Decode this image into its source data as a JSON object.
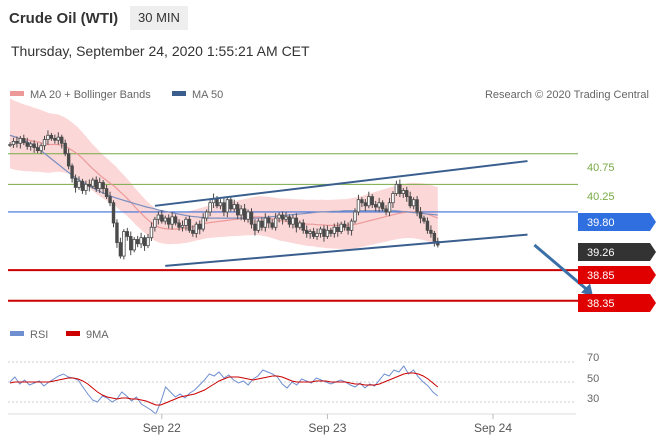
{
  "header": {
    "title": "Crude Oil (WTI)",
    "timeframe": "30 MIN",
    "datetime": "Thursday, September 24, 2020 1:55:21 AM CET"
  },
  "legend": {
    "ma20_label": "MA 20 + Bollinger Bands",
    "ma50_label": "MA 50",
    "credit": "Research © 2020 Trading Central"
  },
  "rsi_legend": {
    "rsi_label": "RSI",
    "ma9_label": "9MA"
  },
  "colors": {
    "bollinger": "#f9c9c9",
    "ma20": "#ee9999",
    "ma50": "#7a8fc0",
    "trendline": "#3a5f8f",
    "candle": "#4a4a4a",
    "resistance": "#77aa44",
    "pivot": "#3a6fd8",
    "last": "#333333",
    "support": "#cc0000",
    "forecast_arrow": "#3a6fa8",
    "rsi": "#6f8fd0",
    "rsi_ma": "#cc0000"
  },
  "chart_data": [
    {
      "type": "candlestick",
      "title": "Crude Oil (WTI)",
      "ylim": [
        38.2,
        41.3
      ],
      "x_ticks": [
        {
          "label": "Sep 22",
          "index": 44
        },
        {
          "label": "Sep 23",
          "index": 92
        },
        {
          "label": "Sep 24",
          "index": 140
        }
      ],
      "levels": [
        {
          "label": "40.75",
          "value": 40.75,
          "kind": "resistance"
        },
        {
          "label": "40.25",
          "value": 40.25,
          "kind": "resistance"
        },
        {
          "label": "39.80",
          "value": 39.8,
          "kind": "pivot"
        },
        {
          "label": "39.26",
          "value": 39.26,
          "kind": "last"
        },
        {
          "label": "38.85",
          "value": 38.85,
          "kind": "support"
        },
        {
          "label": "38.35",
          "value": 38.35,
          "kind": "support"
        }
      ],
      "channel": {
        "upper": {
          "start": [
            42,
            39.9
          ],
          "end": [
            150,
            40.63
          ]
        },
        "lower": {
          "start": [
            45,
            38.92
          ],
          "end": [
            150,
            39.43
          ]
        }
      },
      "forecast": {
        "start": [
          152,
          39.26
        ],
        "end": [
          169,
          38.42
        ]
      },
      "close": [
        40.9,
        40.95,
        40.92,
        41.0,
        40.93,
        40.87,
        40.91,
        40.85,
        40.8,
        40.88,
        40.98,
        41.05,
        41.0,
        40.97,
        41.02,
        40.92,
        40.75,
        40.55,
        40.35,
        40.2,
        40.3,
        40.15,
        40.25,
        40.22,
        40.32,
        40.18,
        40.28,
        40.18,
        40.05,
        39.95,
        39.62,
        39.3,
        39.08,
        39.48,
        39.4,
        39.18,
        39.35,
        39.28,
        39.38,
        39.25,
        39.38,
        39.55,
        39.68,
        39.75,
        39.65,
        39.7,
        39.6,
        39.72,
        39.62,
        39.55,
        39.58,
        39.68,
        39.5,
        39.45,
        39.6,
        39.52,
        39.7,
        39.8,
        39.95,
        40.02,
        39.9,
        39.95,
        39.8,
        40.0,
        39.85,
        39.92,
        39.75,
        39.85,
        39.68,
        39.8,
        39.6,
        39.5,
        39.65,
        39.55,
        39.7,
        39.62,
        39.55,
        39.7,
        39.75,
        39.68,
        39.72,
        39.6,
        39.7,
        39.55,
        39.62,
        39.5,
        39.45,
        39.48,
        39.4,
        39.45,
        39.52,
        39.4,
        39.5,
        39.45,
        39.55,
        39.48,
        39.6,
        39.55,
        39.5,
        39.65,
        39.8,
        40.0,
        39.95,
        39.9,
        40.05,
        39.92,
        39.88,
        39.95,
        39.85,
        39.8,
        39.95,
        40.1,
        40.25,
        40.1,
        40.15,
        40.05,
        39.9,
        40.0,
        39.8,
        39.7,
        39.65,
        39.5,
        39.45,
        39.32,
        39.26
      ],
      "ma20": [
        41.05,
        41.02,
        41.0,
        40.98,
        40.97,
        40.95,
        40.94,
        40.92,
        40.9,
        40.9,
        40.9,
        40.88,
        40.85,
        40.8,
        40.75,
        40.68,
        40.6,
        40.52,
        40.45,
        40.38,
        40.32,
        40.26,
        40.2,
        40.12,
        40.05,
        39.97,
        39.88,
        39.8,
        39.72,
        39.65,
        39.59,
        39.55,
        39.53,
        39.52,
        39.52,
        39.52,
        39.53,
        39.54,
        39.56,
        39.58,
        39.6,
        39.62,
        39.63,
        39.64,
        39.65,
        39.66,
        39.67,
        39.68,
        39.69,
        39.7,
        39.71,
        39.72,
        39.72,
        39.71,
        39.7,
        39.68,
        39.66,
        39.65,
        39.64,
        39.63,
        39.62,
        39.61,
        39.6,
        39.6,
        39.59,
        39.59,
        39.58,
        39.58,
        39.58,
        39.58,
        39.58,
        39.59,
        39.6,
        39.62,
        39.64,
        39.66,
        39.68,
        39.7,
        39.72,
        39.74,
        39.76,
        39.78,
        39.79,
        39.8,
        39.8,
        39.79,
        39.78,
        39.76,
        39.73,
        39.7
      ],
      "ma50": [
        41.05,
        41.02,
        40.98,
        40.93,
        40.87,
        40.8,
        40.72,
        40.64,
        40.56,
        40.48,
        40.4,
        40.33,
        40.27,
        40.21,
        40.16,
        40.11,
        40.07,
        40.03,
        40.0,
        39.97,
        39.94,
        39.91,
        39.88,
        39.86,
        39.83,
        39.81,
        39.79,
        39.77,
        39.75,
        39.73,
        39.72,
        39.71,
        39.7,
        39.7,
        39.7,
        39.7,
        39.7,
        39.7,
        39.7,
        39.7,
        39.7,
        39.71,
        39.72,
        39.73,
        39.74,
        39.75,
        39.76,
        39.77,
        39.78,
        39.79,
        39.8,
        39.8,
        39.81,
        39.81,
        39.82,
        39.82,
        39.82,
        39.82,
        39.82,
        39.82,
        39.82,
        39.82,
        39.82,
        39.81,
        39.8,
        39.79,
        39.78,
        39.77,
        39.76,
        39.75
      ],
      "rsi_levels": [
        {
          "label": "70",
          "value": 70
        },
        {
          "label": "50",
          "value": 50
        },
        {
          "label": "30",
          "value": 30
        }
      ],
      "rsi_ylim": [
        20,
        80
      ],
      "rsi": [
        50,
        55,
        48,
        52,
        47,
        49,
        51,
        46,
        50,
        53,
        56,
        58,
        55,
        54,
        52,
        45,
        38,
        32,
        30,
        36,
        34,
        30,
        33,
        40,
        36,
        31,
        35,
        28,
        25,
        22,
        18,
        30,
        45,
        40,
        35,
        38,
        34,
        39,
        42,
        47,
        52,
        58,
        56,
        60,
        54,
        57,
        52,
        49,
        51,
        47,
        53,
        56,
        62,
        60,
        58,
        55,
        48,
        44,
        50,
        47,
        53,
        51,
        49,
        54,
        52,
        50,
        48,
        50,
        52,
        50,
        47,
        45,
        49,
        44,
        48,
        46,
        52,
        58,
        56,
        62,
        60,
        66,
        58,
        62,
        55,
        50,
        46,
        40,
        36
      ],
      "rsi_ma": [
        49,
        50,
        50,
        50,
        50,
        50,
        50,
        50,
        50,
        51,
        52,
        53,
        54,
        54,
        53,
        51,
        48,
        44,
        40,
        37,
        35,
        34,
        33,
        34,
        34,
        33,
        33,
        32,
        31,
        29,
        27,
        27,
        29,
        31,
        33,
        35,
        36,
        37,
        38,
        40,
        42,
        45,
        48,
        51,
        53,
        55,
        55,
        55,
        54,
        53,
        52,
        53,
        54,
        55,
        56,
        56,
        55,
        53,
        51,
        50,
        50,
        50,
        50,
        51,
        51,
        51,
        50,
        50,
        50,
        50,
        49,
        48,
        48,
        47,
        47,
        47,
        48,
        50,
        52,
        54,
        56,
        58,
        59,
        59,
        58,
        56,
        53,
        49,
        45
      ]
    }
  ]
}
